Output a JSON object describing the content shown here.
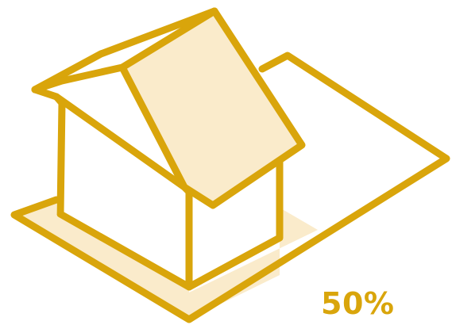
{
  "illustration": {
    "subject": "house-on-lot-icon",
    "coverage_value": 0.5,
    "coverage_label": "50%"
  },
  "colors": {
    "outline": "#D9A50B",
    "fill": "#FAEBCB",
    "label": "#D9A50B",
    "background": "#FFFFFF"
  }
}
